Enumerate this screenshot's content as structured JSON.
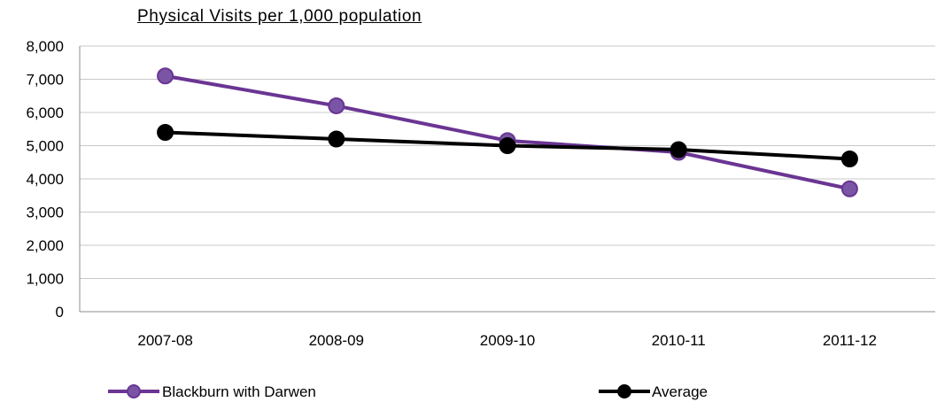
{
  "chart_data": {
    "type": "line",
    "title": "Physical Visits per 1,000 population",
    "categories": [
      "2007-08",
      "2008-09",
      "2009-10",
      "2010-11",
      "2011-12"
    ],
    "series": [
      {
        "name": "Blackburn with Darwen",
        "values": [
          7100,
          6200,
          5150,
          4800,
          3700
        ],
        "color": "#7a55a6",
        "line_color": "#6a3593"
      },
      {
        "name": "Average",
        "values": [
          5400,
          5200,
          5000,
          4880,
          4600
        ],
        "color": "#000000",
        "line_color": "#000000"
      }
    ],
    "ylim": [
      0,
      8000
    ],
    "yticks": [
      "0",
      "1,000",
      "2,000",
      "3,000",
      "4,000",
      "5,000",
      "6,000",
      "7,000",
      "8,000"
    ],
    "ytick_values": [
      0,
      1000,
      2000,
      3000,
      4000,
      5000,
      6000,
      7000,
      8000
    ],
    "grid": true,
    "legend": "bottom"
  }
}
